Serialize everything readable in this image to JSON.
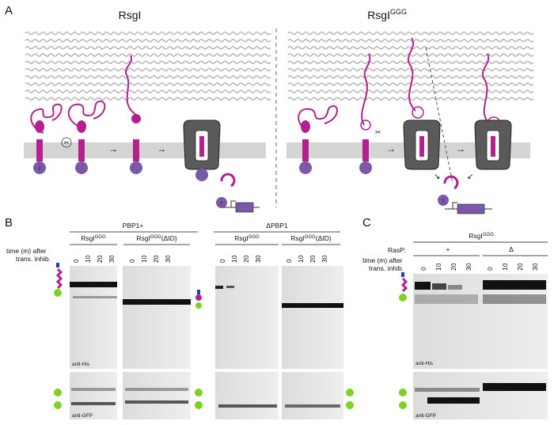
{
  "panels": {
    "A": {
      "letter": "A",
      "left_title": "RsgI",
      "right_title_base": "RsgI",
      "right_title_sup": "GGG"
    },
    "B": {
      "letter": "B",
      "groups": [
        {
          "label": "PBP1+"
        },
        {
          "label": "ΔPBP1"
        }
      ],
      "strains": [
        {
          "base": "RsgI",
          "sup": "GGG",
          "suffix": ""
        },
        {
          "base": "RsgI",
          "sup": "GGG",
          "suffix": "(ΔID)"
        },
        {
          "base": "RsgI",
          "sup": "GGG",
          "suffix": ""
        },
        {
          "base": "RsgI",
          "sup": "GGG",
          "suffix": "(ΔID)"
        }
      ],
      "time_label": [
        "time (m) after",
        "trans. inhib."
      ],
      "timepoints": [
        "0",
        "10",
        "20",
        "30"
      ],
      "blot_labels": {
        "top": "anti-His",
        "bottom": "anti-GFP"
      }
    },
    "C": {
      "letter": "C",
      "strain": {
        "base": "RsgI",
        "sup": "GGG"
      },
      "rasp_label": "RasP:",
      "conditions": [
        "+",
        "Δ"
      ],
      "time_label": [
        "time (m) after",
        "trans. inhib."
      ],
      "timepoints": [
        "0",
        "10",
        "20",
        "30"
      ],
      "blot_labels": {
        "top": "anti-His",
        "bottom": "anti-GFP"
      }
    }
  },
  "colors": {
    "magenta": "#b5208f",
    "purple": "#7a5aa8",
    "membrane": "#d4d4d4",
    "wall": "#b8b8b8",
    "blot_bg": "#e6e6e6",
    "green": "#7cd321",
    "blue": "#1f3fbf"
  },
  "icons": [
    "scissors-icon",
    "inhibitor-i-icon",
    "promoter-arrow-icon"
  ]
}
